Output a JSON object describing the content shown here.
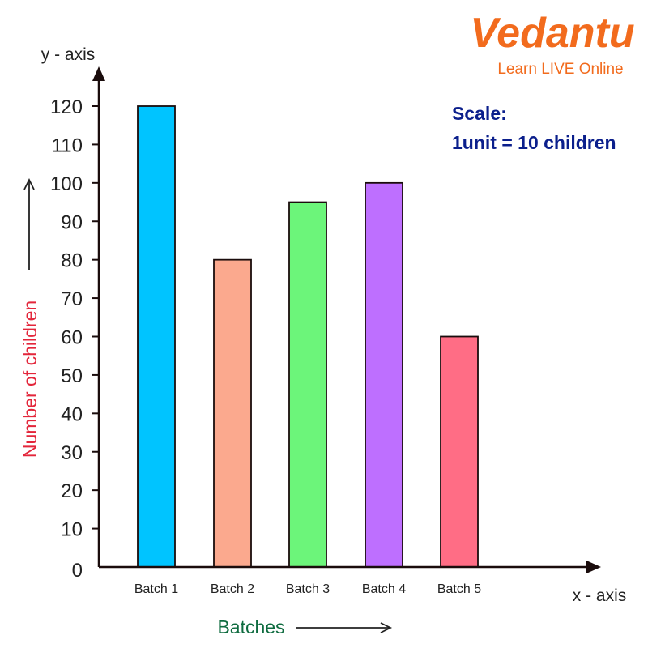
{
  "brand": {
    "name": "Vedantu",
    "tagline": "Learn LIVE Online",
    "color": "#F26B1D"
  },
  "note": {
    "line1": "Scale:",
    "line2": "1unit = 10 children",
    "color": "#0B1F8C"
  },
  "chart_data": {
    "type": "bar",
    "categories": [
      "Batch 1",
      "Batch 2",
      "Batch 3",
      "Batch 4",
      "Batch 5"
    ],
    "values": [
      120,
      80,
      95,
      100,
      60
    ],
    "colors": [
      "#00C4FF",
      "#FBA98E",
      "#6CF57A",
      "#BE6FFF",
      "#FF6D85"
    ],
    "title": "",
    "xlabel": "Batches",
    "ylabel": "Number of children",
    "x_axis_name": "x - axis",
    "y_axis_name": "y - axis",
    "ylim": [
      0,
      120
    ],
    "yticks": [
      0,
      10,
      20,
      30,
      40,
      50,
      60,
      70,
      80,
      90,
      100,
      110,
      120
    ],
    "grid": false,
    "legend": "none",
    "xlabel_color": "#0E6B3F",
    "ylabel_color": "#E3263B"
  }
}
